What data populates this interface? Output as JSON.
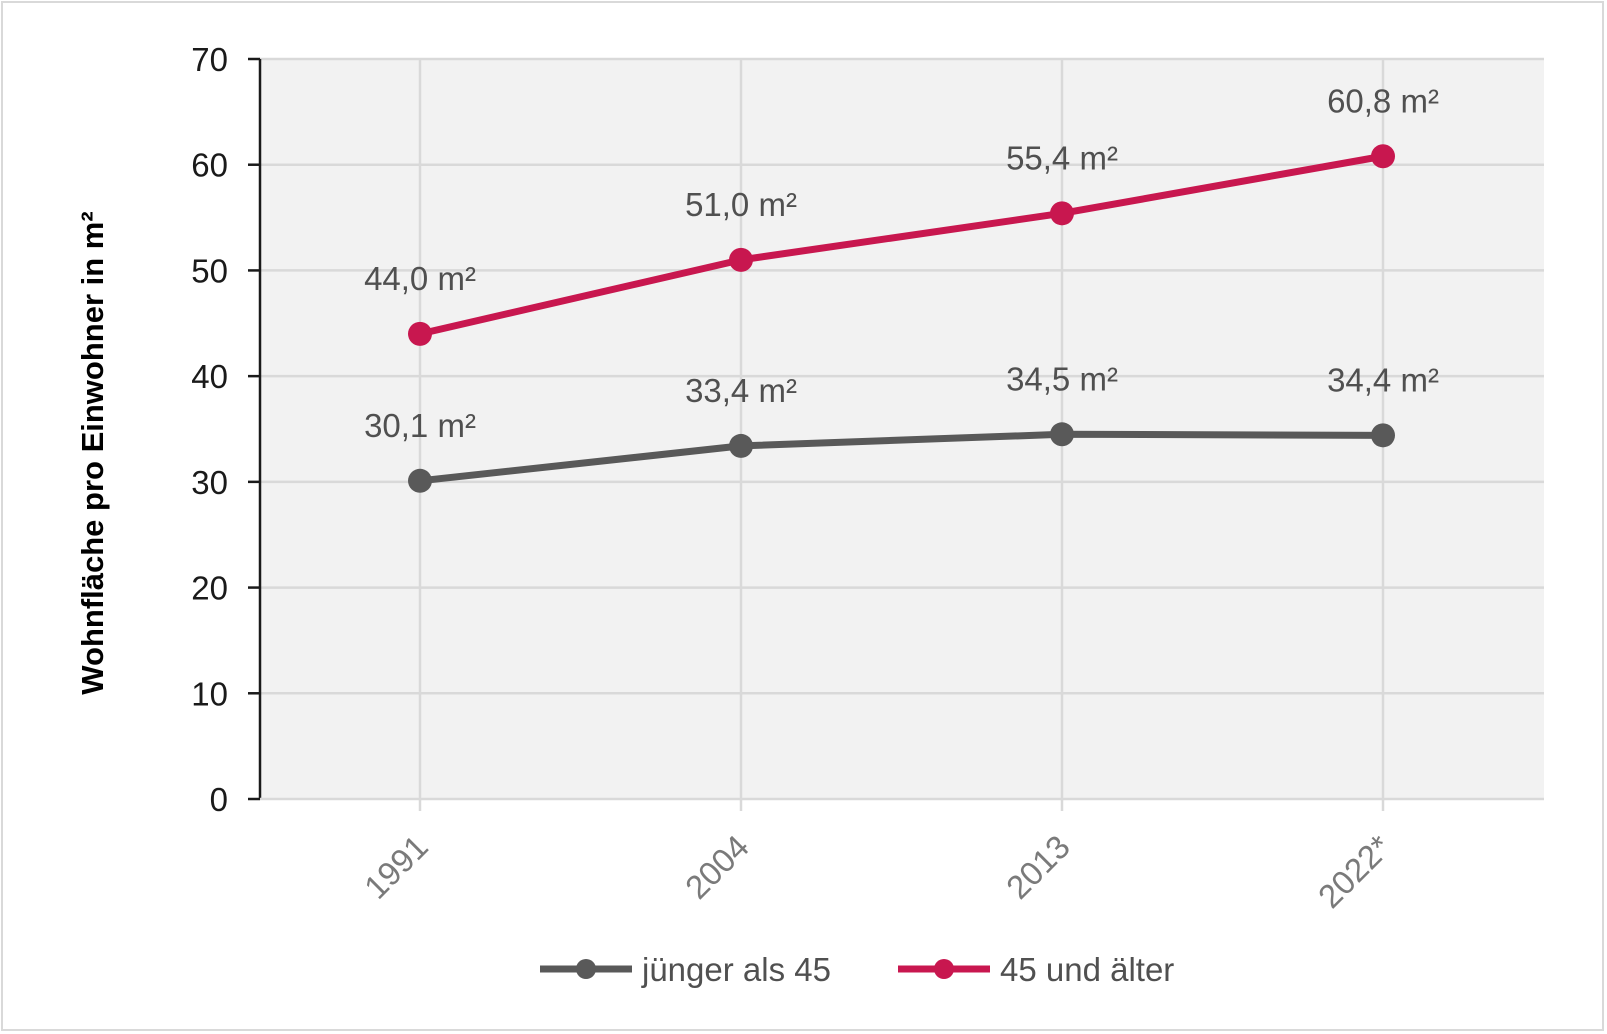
{
  "chart_data": {
    "type": "line",
    "ylabel": "Wohnfläche pro Einwohner in m²",
    "xlabel": "",
    "categories": [
      "1991",
      "2004",
      "2013",
      "2022*"
    ],
    "ylim": [
      0,
      70
    ],
    "yticks": [
      "0",
      "10",
      "20",
      "30",
      "40",
      "50",
      "60",
      "70"
    ],
    "grid": true,
    "legend_position": "bottom",
    "series": [
      {
        "name": "jünger als 45",
        "color": "#595959",
        "values": [
          30.1,
          33.4,
          34.5,
          34.4
        ],
        "labels": [
          "30,1 m²",
          "33,4 m²",
          "34,5 m²",
          "34,4 m²"
        ]
      },
      {
        "name": "45 und älter",
        "color": "#c8174f",
        "values": [
          44.0,
          51.0,
          55.4,
          60.8
        ],
        "labels": [
          "44,0 m²",
          "51,0 m²",
          "55,4 m²",
          "60,8 m²"
        ]
      }
    ]
  }
}
